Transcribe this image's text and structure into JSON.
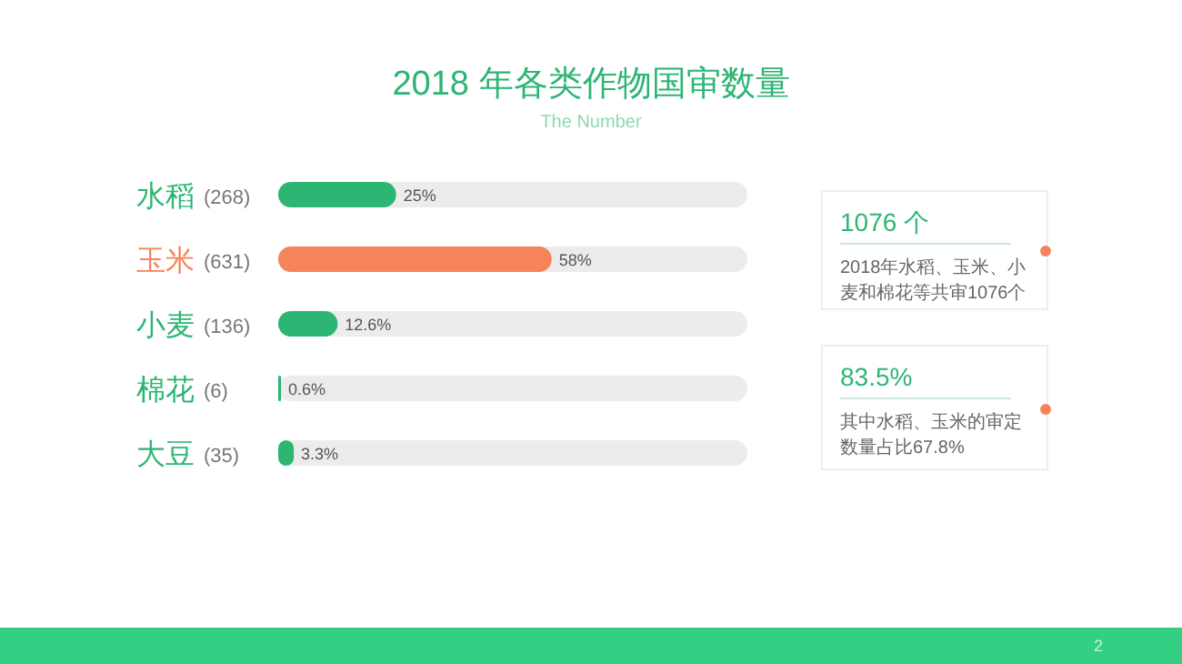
{
  "chart_data": {
    "type": "bar",
    "orientation": "horizontal",
    "title": "2018 年各类作物国审数量",
    "subtitle": "The Number",
    "categories": [
      "水稻",
      "玉米",
      "小麦",
      "棉花",
      "大豆"
    ],
    "values": [
      25,
      58,
      12.6,
      0.6,
      3.3
    ],
    "colors": [
      "#2db574",
      "#f5845a",
      "#2db574",
      "#2db574",
      "#2db574"
    ],
    "value_labels": [
      "25%",
      "58%",
      "12.6%",
      "0.6%",
      "3.3%"
    ],
    "annotations": [
      "(268)",
      "(631)",
      "(136)",
      "(6)",
      "(35)",
      "1076 个",
      "2018年水稻、玉米、小麦和棉花等共审1076个",
      "83.5%",
      "其中水稻、玉米的审定数量占比67.8%",
      "2"
    ]
  }
}
